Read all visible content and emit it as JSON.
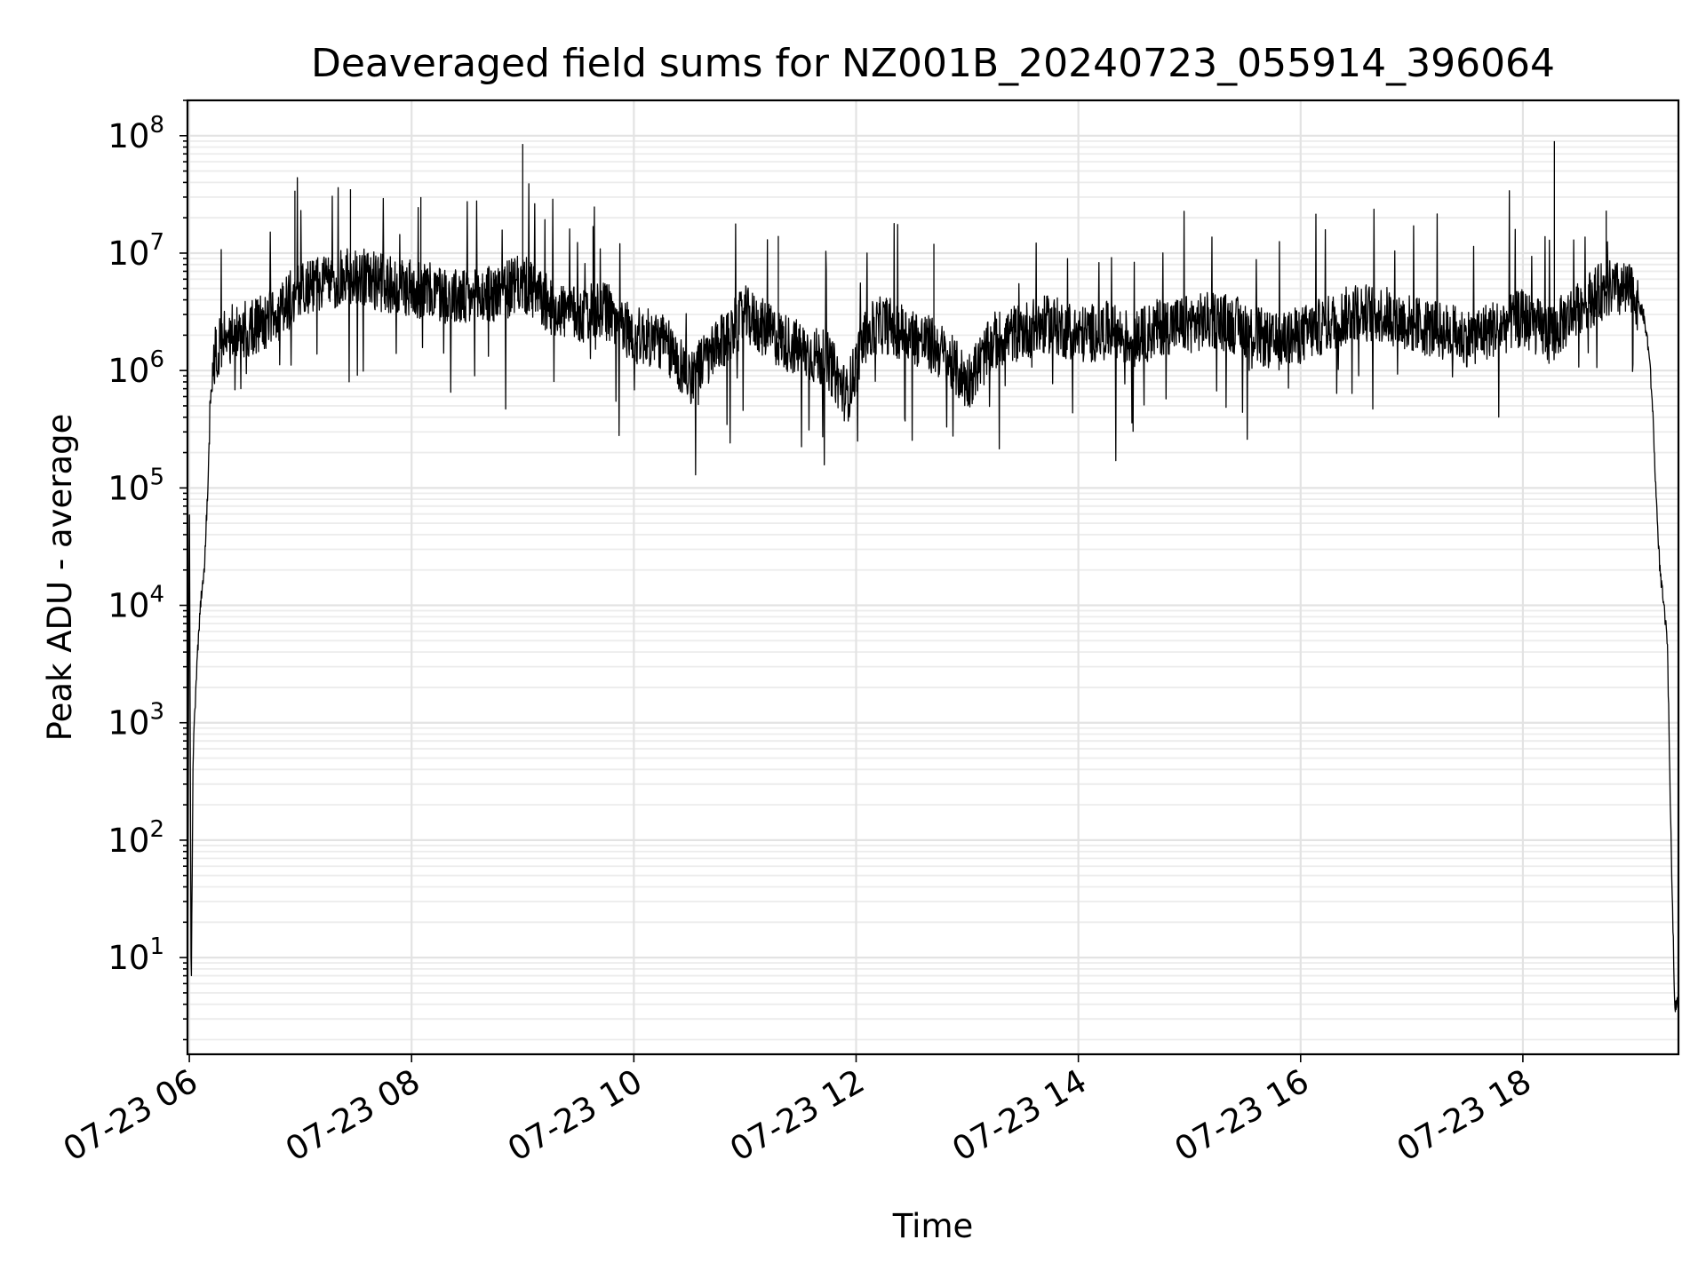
{
  "chart_data": {
    "type": "line",
    "title": "Deaveraged field sums for NZ001B_20240723_055914_396064",
    "xlabel": "Time",
    "ylabel": "Peak ADU - average",
    "yscale": "log",
    "ylim": [
      1.5,
      200000000
    ],
    "xlim": [
      "2024-07-23 05:59",
      "2024-07-23 19:24"
    ],
    "grid": "on",
    "x_ticks": [
      "07-23 06",
      "07-23 08",
      "07-23 10",
      "07-23 12",
      "07-23 14",
      "07-23 16",
      "07-23 18"
    ],
    "y_ticks": [
      {
        "base": "10",
        "exp": "1",
        "value": 10
      },
      {
        "base": "10",
        "exp": "2",
        "value": 100
      },
      {
        "base": "10",
        "exp": "3",
        "value": 1000
      },
      {
        "base": "10",
        "exp": "4",
        "value": 10000
      },
      {
        "base": "10",
        "exp": "5",
        "value": 100000
      },
      {
        "base": "10",
        "exp": "6",
        "value": 1000000
      },
      {
        "base": "10",
        "exp": "7",
        "value": 10000000
      },
      {
        "base": "10",
        "exp": "8",
        "value": 100000000
      }
    ],
    "series": [
      {
        "color": "#000000",
        "x": [
          "2024-07-23 05:59",
          "2024-07-23 06:00",
          "2024-07-23 06:01",
          "2024-07-23 06:02",
          "2024-07-23 06:04",
          "2024-07-23 06:06",
          "2024-07-23 06:08",
          "2024-07-23 06:10",
          "2024-07-23 06:12",
          "2024-07-23 06:15",
          "2024-07-23 06:20",
          "2024-07-23 06:30",
          "2024-07-23 06:45",
          "2024-07-23 07:00",
          "2024-07-23 07:15",
          "2024-07-23 07:30",
          "2024-07-23 07:45",
          "2024-07-23 08:00",
          "2024-07-23 08:15",
          "2024-07-23 08:30",
          "2024-07-23 08:45",
          "2024-07-23 09:00",
          "2024-07-23 09:15",
          "2024-07-23 09:30",
          "2024-07-23 09:45",
          "2024-07-23 10:00",
          "2024-07-23 10:15",
          "2024-07-23 10:30",
          "2024-07-23 10:45",
          "2024-07-23 11:00",
          "2024-07-23 11:15",
          "2024-07-23 11:30",
          "2024-07-23 11:45",
          "2024-07-23 11:55",
          "2024-07-23 12:05",
          "2024-07-23 12:15",
          "2024-07-23 12:30",
          "2024-07-23 12:45",
          "2024-07-23 13:00",
          "2024-07-23 13:15",
          "2024-07-23 13:30",
          "2024-07-23 13:45",
          "2024-07-23 14:00",
          "2024-07-23 14:15",
          "2024-07-23 14:30",
          "2024-07-23 14:45",
          "2024-07-23 15:00",
          "2024-07-23 15:15",
          "2024-07-23 15:30",
          "2024-07-23 15:45",
          "2024-07-23 16:00",
          "2024-07-23 16:15",
          "2024-07-23 16:30",
          "2024-07-23 16:45",
          "2024-07-23 17:00",
          "2024-07-23 17:15",
          "2024-07-23 17:30",
          "2024-07-23 17:45",
          "2024-07-23 18:00",
          "2024-07-23 18:15",
          "2024-07-23 18:30",
          "2024-07-23 18:45",
          "2024-07-23 19:00",
          "2024-07-23 19:05",
          "2024-07-23 19:08",
          "2024-07-23 19:10",
          "2024-07-23 19:12",
          "2024-07-23 19:14",
          "2024-07-23 19:16",
          "2024-07-23 19:18",
          "2024-07-23 19:20",
          "2024-07-23 19:22",
          "2024-07-23 19:24"
        ],
        "y": [
          3,
          100000,
          4,
          500,
          3000,
          10000,
          20000,
          100000,
          1000000,
          1500000,
          2000000,
          2200000,
          2800000,
          5000000,
          5500000,
          6500000,
          5500000,
          5000000,
          4500000,
          4000000,
          4500000,
          5500000,
          3500000,
          3000000,
          3200000,
          2000000,
          1800000,
          900000,
          1500000,
          3000000,
          2000000,
          1500000,
          1200000,
          600000,
          2000000,
          2500000,
          2000000,
          1500000,
          800000,
          1800000,
          2200000,
          2500000,
          2000000,
          2200000,
          1800000,
          2400000,
          2500000,
          2700000,
          2300000,
          1700000,
          2000000,
          2500000,
          3200000,
          3000000,
          2500000,
          2200000,
          1900000,
          2300000,
          2800000,
          2000000,
          3500000,
          5000000,
          4500000,
          3000000,
          1500000,
          500000,
          80000,
          20000,
          10000,
          5000,
          100,
          4,
          4
        ],
        "spikes": [
          {
            "x": "2024-07-23 06:57",
            "y": 34000000
          },
          {
            "x": "2024-07-23 07:27",
            "y": 35000000
          },
          {
            "x": "2024-07-23 08:05",
            "y": 30000000
          },
          {
            "x": "2024-07-23 09:00",
            "y": 85000000
          },
          {
            "x": "2024-07-23 09:38",
            "y": 17000000
          },
          {
            "x": "2024-07-23 11:18",
            "y": 14000000
          },
          {
            "x": "2024-07-23 12:42",
            "y": 12000000
          },
          {
            "x": "2024-07-23 18:17",
            "y": 90000000
          },
          {
            "x": "2024-07-23 18:45",
            "y": 23000000
          }
        ]
      }
    ]
  }
}
